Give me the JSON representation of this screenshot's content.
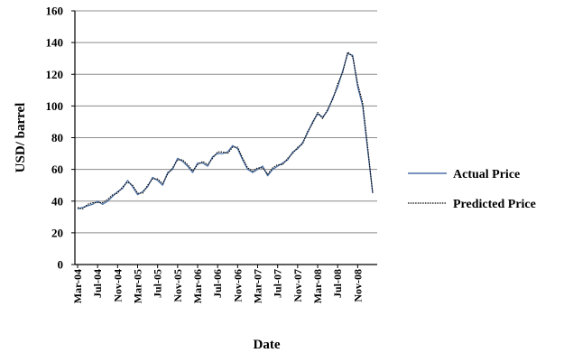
{
  "chart_data": {
    "type": "line",
    "xlabel": "Date",
    "ylabel": "USD/ barrel",
    "ylim": [
      0,
      160
    ],
    "yticks": [
      0,
      20,
      40,
      60,
      80,
      100,
      120,
      140,
      160
    ],
    "grid": true,
    "legend": "right",
    "x_tick_labels": [
      "Mar-04",
      "Jul-04",
      "Nov-04",
      "Mar-05",
      "Jul-05",
      "Nov-05",
      "Mar-06",
      "Jul-06",
      "Nov-06",
      "Mar-07",
      "Jul-07",
      "Nov-07",
      "Mar-08",
      "Jul-08",
      "Nov-08"
    ],
    "x": [
      "Mar-04",
      "Apr-04",
      "May-04",
      "Jun-04",
      "Jul-04",
      "Aug-04",
      "Sep-04",
      "Oct-04",
      "Nov-04",
      "Dec-04",
      "Jan-05",
      "Feb-05",
      "Mar-05",
      "Apr-05",
      "May-05",
      "Jun-05",
      "Jul-05",
      "Aug-05",
      "Sep-05",
      "Oct-05",
      "Nov-05",
      "Dec-05",
      "Jan-06",
      "Feb-06",
      "Mar-06",
      "Apr-06",
      "May-06",
      "Jun-06",
      "Jul-06",
      "Aug-06",
      "Sep-06",
      "Oct-06",
      "Nov-06",
      "Dec-06",
      "Jan-07",
      "Feb-07",
      "Mar-07",
      "Apr-07",
      "May-07",
      "Jun-07",
      "Jul-07",
      "Aug-07",
      "Sep-07",
      "Oct-07",
      "Nov-07",
      "Dec-07",
      "Jan-08",
      "Feb-08",
      "Mar-08",
      "Apr-08",
      "May-08",
      "Jun-08",
      "Jul-08",
      "Aug-08",
      "Sep-08",
      "Oct-08",
      "Nov-08",
      "Dec-08",
      "Jan-09",
      "Feb-09"
    ],
    "series": [
      {
        "name": "Actual Price",
        "color": "#4a6fa5",
        "style": "solid",
        "values": [
          35,
          36,
          37,
          38,
          40,
          38,
          40,
          43,
          46,
          48,
          53,
          49,
          44,
          46,
          49,
          55,
          53,
          50,
          58,
          60,
          67,
          65,
          62,
          58,
          64,
          64,
          62,
          68,
          70,
          70,
          71,
          75,
          73,
          66,
          60,
          58,
          60,
          62,
          56,
          60,
          62,
          64,
          66,
          71,
          73,
          77,
          83,
          90,
          95,
          93,
          97,
          105,
          112,
          122,
          133,
          132,
          112,
          100,
          72,
          45
        ]
      },
      {
        "name": "Predicted Price",
        "color": "#000000",
        "style": "dotted",
        "values": [
          36,
          35,
          38,
          39,
          39,
          39,
          41,
          44,
          45,
          49,
          52,
          50,
          45,
          45,
          50,
          54,
          54,
          51,
          57,
          61,
          66,
          66,
          63,
          59,
          63,
          65,
          63,
          67,
          71,
          71,
          70,
          74,
          74,
          67,
          61,
          59,
          61,
          61,
          57,
          61,
          63,
          63,
          67,
          70,
          74,
          76,
          84,
          89,
          96,
          92,
          98,
          104,
          114,
          121,
          134,
          131,
          114,
          102,
          74,
          45
        ]
      }
    ]
  }
}
